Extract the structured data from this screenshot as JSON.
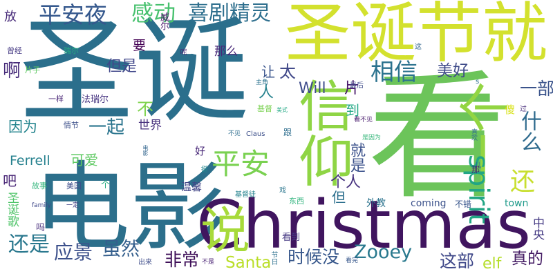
{
  "words": [
    {
      "text": "圣诞",
      "color": "#2b6f8c"
    },
    {
      "text": "看",
      "color": "#6cc45a"
    },
    {
      "text": "电影",
      "color": "#2c6f8b"
    },
    {
      "text": "Christmas",
      "color": "#40155f"
    },
    {
      "text": "圣诞节就",
      "color": "#d3e12e"
    },
    {
      "text": "一个",
      "color": "#93d542"
    },
    {
      "text": "信仰",
      "color": "#8fd545"
    },
    {
      "text": "说",
      "color": "#a7da3a"
    },
    {
      "text": "平安夜",
      "color": "#35588d"
    },
    {
      "text": "感动",
      "color": "#47c16e"
    },
    {
      "text": "喜剧精灵",
      "color": "#2e6f8e"
    },
    {
      "text": "相信",
      "color": "#2b728e"
    },
    {
      "text": "平安",
      "color": "#7ad151"
    },
    {
      "text": "spirit",
      "color": "#21a685"
    },
    {
      "text": "还",
      "color": "#c8df2f"
    },
    {
      "text": "什么",
      "color": "#2f6b8e"
    },
    {
      "text": "一部",
      "color": "#3a538b"
    },
    {
      "text": "美好",
      "color": "#3f4b89"
    },
    {
      "text": "Zooey",
      "color": "#29798e"
    },
    {
      "text": "还是",
      "color": "#2a788e"
    },
    {
      "text": "应景",
      "color": "#3c508b"
    },
    {
      "text": "虽然",
      "color": "#355f8d"
    },
    {
      "text": "非常",
      "color": "#3e0f58"
    },
    {
      "text": "Santa",
      "color": "#bade28"
    },
    {
      "text": "时候没",
      "color": "#38588c"
    },
    {
      "text": "这部",
      "color": "#3f4889"
    },
    {
      "text": "真的",
      "color": "#431a63"
    },
    {
      "text": "elf",
      "color": "#b5de2b"
    },
    {
      "text": "Will",
      "color": "#3e4c8a"
    },
    {
      "text": "太",
      "color": "#3f4788"
    },
    {
      "text": "人",
      "color": "#26828e"
    },
    {
      "text": "片",
      "color": "#48186a"
    },
    {
      "text": "不",
      "color": "#7fd34e"
    },
    {
      "text": "到",
      "color": "#22a884"
    },
    {
      "text": "一起",
      "color": "#2b758e"
    },
    {
      "text": "世界",
      "color": "#462f7c"
    },
    {
      "text": "因为",
      "color": "#25858e"
    },
    {
      "text": "但是",
      "color": "#40478a"
    },
    {
      "text": "让",
      "color": "#3a548c"
    },
    {
      "text": "那么",
      "color": "#482878"
    },
    {
      "text": "要",
      "color": "#440154"
    },
    {
      "text": "啊",
      "color": "#472c7a"
    },
    {
      "text": "放",
      "color": "#472a79"
    },
    {
      "text": "威尔",
      "color": "#48186a"
    },
    {
      "text": "曾经",
      "color": "#443983"
    },
    {
      "text": "瑞尔",
      "color": "#26ad81"
    },
    {
      "text": "呢",
      "color": "#482576"
    },
    {
      "text": "片子",
      "color": "#5ec962"
    },
    {
      "text": "一样",
      "color": "#482475"
    },
    {
      "text": "法瑞尔",
      "color": "#463480"
    },
    {
      "text": "主角",
      "color": "#2b728e"
    },
    {
      "text": "最后",
      "color": "#3e4a89"
    },
    {
      "text": "这",
      "color": "#32658e"
    },
    {
      "text": "s",
      "color": "#2c718e"
    },
    {
      "text": "情节",
      "color": "#3c4f8a"
    },
    {
      "text": "基督",
      "color": "#7ad151"
    },
    {
      "text": "美式",
      "color": "#22a884"
    },
    {
      "text": "看不见",
      "color": "#481b6d"
    },
    {
      "text": "过",
      "color": "#472d7b"
    },
    {
      "text": "傻",
      "color": "#d8e219"
    },
    {
      "text": "不见",
      "color": "#2e6d8e"
    },
    {
      "text": "Claus",
      "color": "#3c4f8a"
    },
    {
      "text": "跟",
      "color": "#2e6e8e"
    },
    {
      "text": "是因为",
      "color": "#34b679"
    },
    {
      "text": "喜欢",
      "color": "#2f6c8e"
    },
    {
      "text": "电影",
      "color": "#32658e"
    },
    {
      "text": "Ferrell",
      "color": "#26818e"
    },
    {
      "text": "可爱",
      "color": "#5ec962"
    },
    {
      "text": "就是",
      "color": "#3b518b"
    },
    {
      "text": "个人",
      "color": "#46317e"
    },
    {
      "text": "儿",
      "color": "#31668e"
    },
    {
      "text": "吧",
      "color": "#482576"
    },
    {
      "text": "好",
      "color": "#482878"
    },
    {
      "text": "挺",
      "color": "#23898e"
    },
    {
      "text": "那",
      "color": "#482071"
    },
    {
      "text": "故事",
      "color": "#31b57b"
    },
    {
      "text": "美国",
      "color": "#3d4d8a"
    },
    {
      "text": "个",
      "color": "#25ac82"
    },
    {
      "text": "温馨",
      "color": "#414487"
    },
    {
      "text": "戏",
      "color": "#2a768e"
    },
    {
      "text": "基督徒",
      "color": "#25838e"
    },
    {
      "text": "圣诞歌",
      "color": "#50c46a"
    },
    {
      "text": "但",
      "color": "#2d708e"
    },
    {
      "text": "外教",
      "color": "#2c738e"
    },
    {
      "text": "coming",
      "color": "#3b518b"
    },
    {
      "text": "不错",
      "color": "#39568c"
    },
    {
      "text": "town",
      "color": "#1f9a8a"
    },
    {
      "text": "中央",
      "color": "#443a83"
    },
    {
      "text": "family",
      "color": "#3f4889"
    },
    {
      "text": "一定",
      "color": "#414487"
    },
    {
      "text": "东西",
      "color": "#2eb37c"
    },
    {
      "text": "吗",
      "color": "#472d7b"
    },
    {
      "text": "看到",
      "color": "#453882"
    },
    {
      "text": "节日",
      "color": "#2d708e"
    },
    {
      "text": "出来",
      "color": "#3e4c8a"
    },
    {
      "text": "不是",
      "color": "#482173"
    },
    {
      "text": "看完",
      "color": "#38588c"
    }
  ]
}
